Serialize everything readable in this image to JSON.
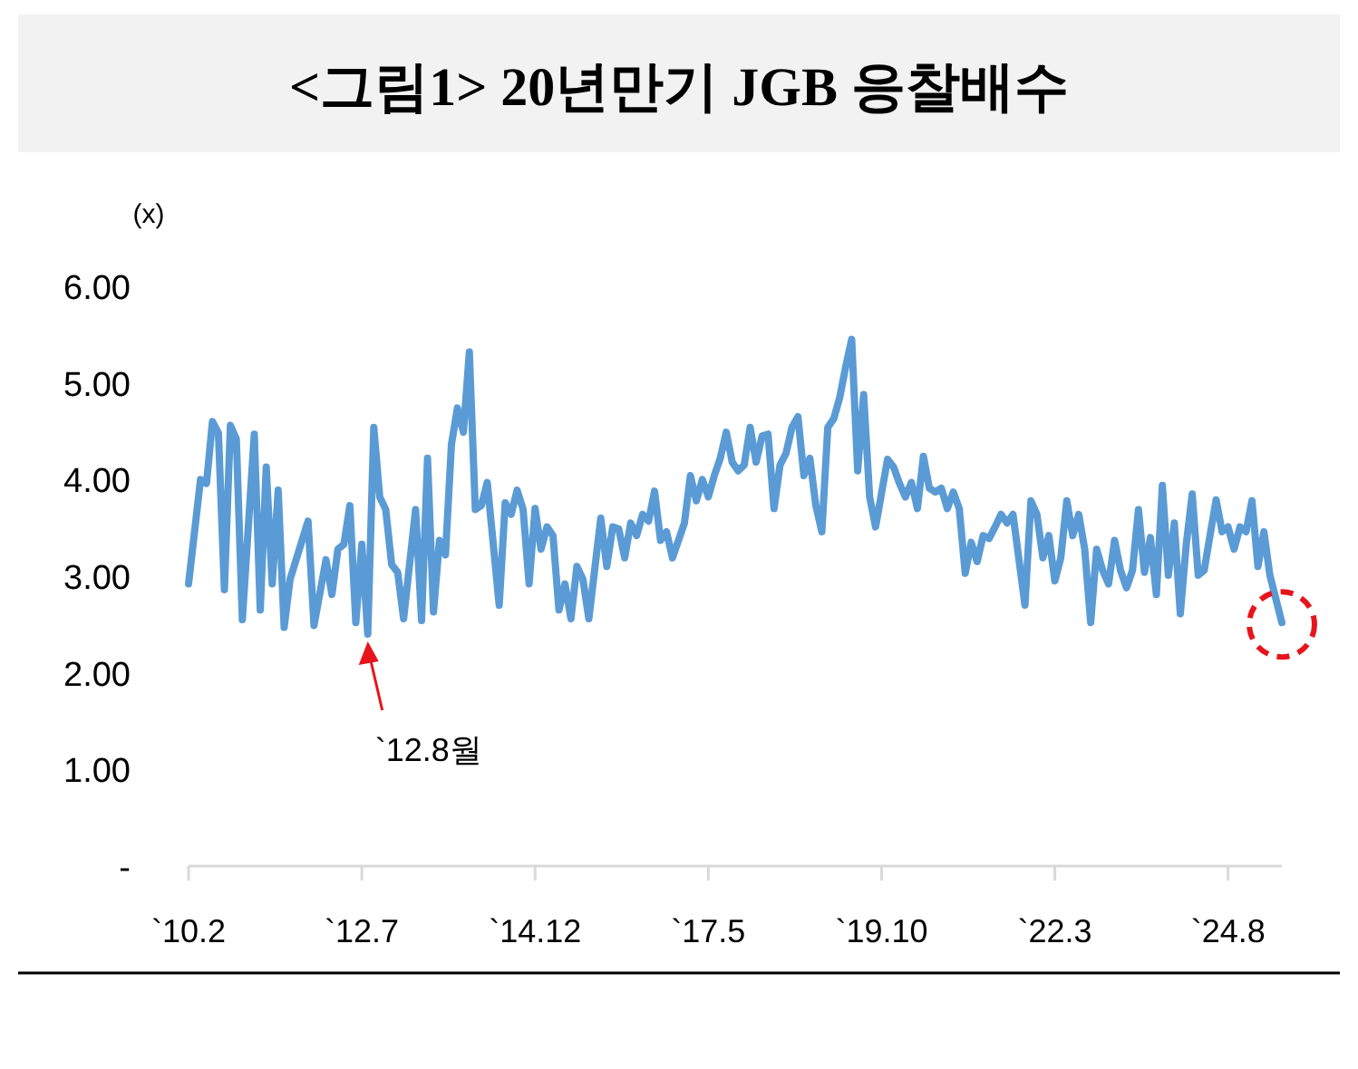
{
  "chart_data": {
    "type": "line",
    "title": "<그림1> 20년만기 JGB 응찰배수",
    "ylabel": "(x)",
    "x": [
      "2010-02",
      "2010-04",
      "2010-05",
      "2010-06",
      "2010-07",
      "2010-08",
      "2010-09",
      "2010-10",
      "2010-11",
      "2011-01",
      "2011-02",
      "2011-03",
      "2011-04",
      "2011-05",
      "2011-06",
      "2011-07",
      "2011-10",
      "2011-11",
      "2012-01",
      "2012-02",
      "2012-03",
      "2012-04",
      "2012-05",
      "2012-06",
      "2012-07",
      "2012-08",
      "2012-09",
      "2012-10",
      "2012-11",
      "2012-12",
      "2013-01",
      "2013-02",
      "2013-04",
      "2013-05",
      "2013-06",
      "2013-07",
      "2013-08",
      "2013-09",
      "2013-10",
      "2013-11",
      "2013-12",
      "2014-01",
      "2014-02",
      "2014-03",
      "2014-04",
      "2014-06",
      "2014-07",
      "2014-08",
      "2014-09",
      "2014-10",
      "2014-11",
      "2014-12",
      "2015-01",
      "2015-02",
      "2015-03",
      "2015-04",
      "2015-05",
      "2015-06",
      "2015-07",
      "2015-08",
      "2015-09",
      "2015-11",
      "2015-12",
      "2016-01",
      "2016-02",
      "2016-03",
      "2016-04",
      "2016-05",
      "2016-06",
      "2016-07",
      "2016-08",
      "2016-09",
      "2016-10",
      "2016-11",
      "2017-01",
      "2017-02",
      "2017-03",
      "2017-04",
      "2017-05",
      "2017-06",
      "2017-07",
      "2017-08",
      "2017-09",
      "2017-10",
      "2017-11",
      "2017-12",
      "2018-01",
      "2018-02",
      "2018-03",
      "2018-04",
      "2018-05",
      "2018-06",
      "2018-07",
      "2018-08",
      "2018-09",
      "2018-10",
      "2018-11",
      "2018-12",
      "2019-01",
      "2019-02",
      "2019-03",
      "2019-04",
      "2019-05",
      "2019-06",
      "2019-07",
      "2019-08",
      "2019-09",
      "2019-11",
      "2019-12",
      "2020-01",
      "2020-02",
      "2020-03",
      "2020-04",
      "2020-05",
      "2020-06",
      "2020-07",
      "2020-08",
      "2020-09",
      "2020-10",
      "2020-11",
      "2020-12",
      "2021-01",
      "2021-02",
      "2021-03",
      "2021-04",
      "2021-05",
      "2021-06",
      "2021-07",
      "2021-08",
      "2021-10",
      "2021-11",
      "2021-12",
      "2022-01",
      "2022-02",
      "2022-03",
      "2022-04",
      "2022-05",
      "2022-06",
      "2022-07",
      "2022-08",
      "2022-09",
      "2022-10",
      "2022-11",
      "2022-12",
      "2023-01",
      "2023-02",
      "2023-03",
      "2023-04",
      "2023-05",
      "2023-06",
      "2023-07",
      "2023-08",
      "2023-09",
      "2023-10",
      "2023-11",
      "2023-12",
      "2024-01",
      "2024-02",
      "2024-03",
      "2024-04",
      "2024-05",
      "2024-06",
      "2024-07",
      "2024-08",
      "2024-09",
      "2024-10",
      "2024-11",
      "2024-12",
      "2025-01",
      "2025-02",
      "2025-03",
      "2025-05"
    ],
    "series": [
      {
        "color": "#5b9bd5",
        "values": [
          2.92,
          4.0,
          3.96,
          4.6,
          4.48,
          2.86,
          4.56,
          4.42,
          2.55,
          4.47,
          2.65,
          4.13,
          2.92,
          3.89,
          2.47,
          2.97,
          3.57,
          2.49,
          3.17,
          2.81,
          3.28,
          3.33,
          3.73,
          2.52,
          3.33,
          2.4,
          4.54,
          3.82,
          3.69,
          3.12,
          3.04,
          2.56,
          3.69,
          2.54,
          4.22,
          2.63,
          3.37,
          3.22,
          4.36,
          4.74,
          4.49,
          5.32,
          3.69,
          3.73,
          3.97,
          2.7,
          3.76,
          3.64,
          3.89,
          3.69,
          2.92,
          3.7,
          3.28,
          3.51,
          3.42,
          2.65,
          2.92,
          2.56,
          3.1,
          2.97,
          2.56,
          3.6,
          3.1,
          3.51,
          3.49,
          3.19,
          3.55,
          3.42,
          3.64,
          3.57,
          3.88,
          3.37,
          3.46,
          3.19,
          3.55,
          4.04,
          3.78,
          4.0,
          3.82,
          4.04,
          4.22,
          4.49,
          4.18,
          4.09,
          4.15,
          4.54,
          4.18,
          4.45,
          4.47,
          3.7,
          4.15,
          4.27,
          4.54,
          4.65,
          4.04,
          4.22,
          3.73,
          3.46,
          4.54,
          4.63,
          4.85,
          5.17,
          5.45,
          4.09,
          4.88,
          3.82,
          3.51,
          4.21,
          4.13,
          3.96,
          3.82,
          3.97,
          3.7,
          4.24,
          3.91,
          3.87,
          3.91,
          3.7,
          3.87,
          3.7,
          3.03,
          3.35,
          3.15,
          3.42,
          3.39,
          3.51,
          3.64,
          3.55,
          3.64,
          2.7,
          3.78,
          3.64,
          3.19,
          3.42,
          2.95,
          3.19,
          3.78,
          3.42,
          3.64,
          3.28,
          2.52,
          3.28,
          3.06,
          2.92,
          3.37,
          3.06,
          2.88,
          3.06,
          3.69,
          3.04,
          3.4,
          2.81,
          3.94,
          3.01,
          3.55,
          2.61,
          3.33,
          3.85,
          3.01,
          3.06,
          3.43,
          3.79,
          3.46,
          3.51,
          3.28,
          3.51,
          3.46,
          3.78,
          3.1,
          3.46,
          3.01,
          2.52
        ]
      }
    ],
    "xlim": [
      "2010-02",
      "2025-05"
    ],
    "xticks": [
      {
        "value": "2010-02",
        "label": "`10.2"
      },
      {
        "value": "2012-07",
        "label": "`12.7"
      },
      {
        "value": "2014-12",
        "label": "`14.12"
      },
      {
        "value": "2017-05",
        "label": "`17.5"
      },
      {
        "value": "2019-10",
        "label": "`19.10"
      },
      {
        "value": "2022-03",
        "label": "`22.3"
      },
      {
        "value": "2024-08",
        "label": "`24.8"
      }
    ],
    "ylim": [
      0,
      6
    ],
    "yticks": [
      {
        "value": 0,
        "label": "-"
      },
      {
        "value": 1,
        "label": "1.00"
      },
      {
        "value": 2,
        "label": "2.00"
      },
      {
        "value": 3,
        "label": "3.00"
      },
      {
        "value": 4,
        "label": "4.00"
      },
      {
        "value": 5,
        "label": "5.00"
      },
      {
        "value": 6,
        "label": "6.00"
      }
    ],
    "annotations": [
      {
        "text": "`12.8월",
        "x": "2012-08",
        "y": 2.4
      }
    ]
  }
}
